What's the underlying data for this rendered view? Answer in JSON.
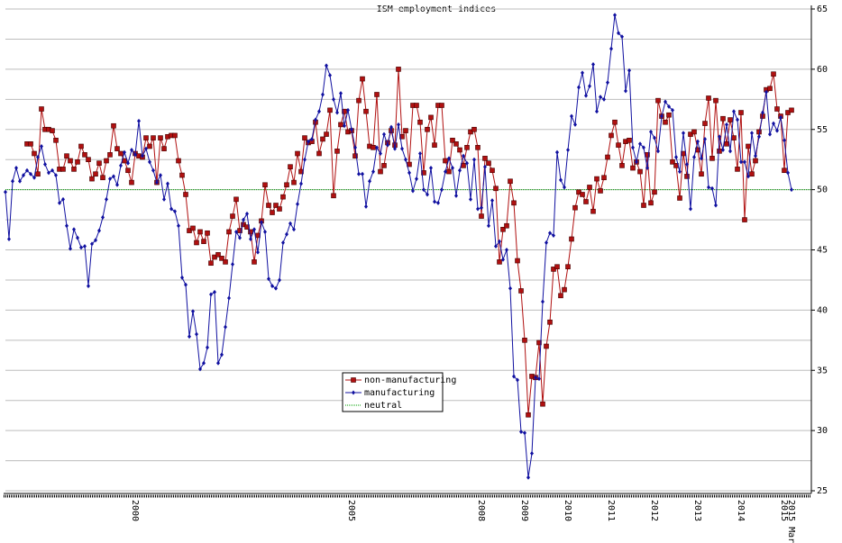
{
  "chart_data": {
    "type": "line",
    "title": "ISM employment indices",
    "categories": [
      null,
      null,
      null,
      null,
      null,
      null,
      null,
      null,
      null,
      null,
      null,
      null,
      null,
      null,
      null,
      null,
      null,
      null,
      null,
      null,
      null,
      null,
      null,
      null,
      null,
      null,
      null,
      null,
      null,
      null,
      null,
      null,
      null,
      null,
      null,
      null,
      "2000",
      null,
      null,
      null,
      null,
      null,
      null,
      null,
      null,
      null,
      null,
      null,
      null,
      null,
      null,
      null,
      null,
      null,
      null,
      null,
      null,
      null,
      null,
      null,
      null,
      null,
      null,
      null,
      null,
      null,
      null,
      null,
      null,
      null,
      null,
      null,
      null,
      null,
      null,
      null,
      null,
      null,
      null,
      null,
      null,
      null,
      null,
      null,
      null,
      null,
      null,
      null,
      null,
      null,
      null,
      null,
      null,
      null,
      null,
      null,
      "2005",
      null,
      null,
      null,
      null,
      null,
      null,
      null,
      null,
      null,
      null,
      null,
      null,
      null,
      null,
      null,
      null,
      null,
      null,
      null,
      null,
      null,
      null,
      null,
      null,
      null,
      null,
      null,
      null,
      null,
      null,
      null,
      null,
      null,
      null,
      null,
      "2008",
      null,
      null,
      null,
      null,
      null,
      null,
      null,
      null,
      null,
      null,
      null,
      "2009",
      null,
      null,
      null,
      null,
      null,
      null,
      null,
      null,
      null,
      null,
      null,
      "2010",
      null,
      null,
      null,
      null,
      null,
      null,
      null,
      null,
      null,
      null,
      null,
      "2011",
      null,
      null,
      null,
      null,
      null,
      null,
      null,
      null,
      null,
      null,
      null,
      "2012",
      null,
      null,
      null,
      null,
      null,
      null,
      null,
      null,
      null,
      null,
      null,
      "2013",
      null,
      null,
      null,
      null,
      null,
      null,
      null,
      null,
      null,
      null,
      null,
      "2014",
      null,
      null,
      null,
      null,
      null,
      null,
      null,
      null,
      null,
      null,
      null,
      "2015",
      null,
      "2015 Mar"
    ],
    "series": [
      {
        "name": "non-manufacturing",
        "color": "#b01010",
        "marker": "square",
        "values": [
          null,
          null,
          null,
          null,
          null,
          null,
          53.8,
          53.8,
          53.0,
          51.3,
          56.7,
          55.0,
          55.0,
          54.9,
          54.1,
          51.7,
          51.7,
          52.8,
          52.4,
          51.7,
          52.3,
          53.6,
          52.9,
          52.5,
          50.9,
          51.3,
          52.2,
          51.0,
          52.4,
          52.9,
          55.3,
          53.4,
          53.0,
          52.4,
          51.6,
          50.6,
          53.0,
          52.8,
          52.7,
          54.3,
          53.6,
          54.3,
          50.6,
          54.3,
          53.4,
          54.4,
          54.5,
          54.5,
          52.4,
          51.2,
          49.6,
          46.6,
          46.8,
          45.6,
          46.5,
          45.7,
          46.4,
          43.9,
          44.4,
          44.6,
          44.3,
          44.0,
          46.5,
          47.8,
          49.2,
          46.6,
          47.1,
          46.9,
          46.5,
          44.0,
          46.2,
          47.4,
          50.4,
          48.7,
          48.1,
          48.7,
          48.4,
          49.4,
          50.4,
          51.9,
          50.6,
          53.0,
          51.5,
          54.3,
          53.9,
          54.0,
          55.6,
          53.0,
          54.2,
          54.6,
          56.6,
          49.5,
          53.2,
          55.4,
          56.5,
          54.8,
          54.9,
          52.8,
          57.4,
          59.2,
          56.5,
          53.6,
          53.5,
          57.9,
          51.5,
          52.0,
          53.9,
          54.9,
          53.7,
          60.0,
          54.4,
          54.9,
          52.1,
          57.0,
          57.0,
          55.6,
          51.4,
          55.0,
          56.0,
          53.7,
          57.0,
          57.0,
          52.4,
          51.5,
          54.1,
          53.8,
          53.3,
          52.0,
          53.5,
          54.8,
          55.0,
          53.5,
          47.8,
          52.6,
          52.2,
          51.6,
          50.1,
          44.0,
          46.7,
          47.0,
          50.7,
          48.9,
          44.1,
          41.6,
          37.5,
          31.3,
          34.5,
          34.4,
          37.3,
          32.2,
          37.0,
          39.0,
          43.4,
          43.6,
          41.2,
          41.7,
          43.6,
          45.9,
          48.5,
          49.8,
          49.6,
          49.0,
          50.2,
          48.2,
          50.9,
          49.9,
          51.0,
          52.7,
          54.5,
          55.6,
          53.7,
          52.0,
          54.0,
          54.1,
          51.8,
          52.3,
          51.5,
          48.7,
          52.9,
          48.9,
          49.8,
          57.4,
          56.1,
          55.6,
          56.2,
          52.3,
          52.0,
          49.3,
          53.0,
          51.1,
          54.6,
          54.8,
          53.3,
          51.3,
          55.5,
          57.6,
          52.6,
          57.4,
          53.2,
          55.9,
          53.8,
          55.8,
          54.3,
          51.7,
          56.4,
          47.5,
          53.6,
          51.3,
          52.4,
          54.8,
          56.1,
          58.3,
          58.4,
          59.6,
          56.7,
          56.1,
          51.6,
          56.4,
          56.6
        ]
      },
      {
        "name": "manufacturing",
        "color": "#1010a0",
        "marker": "diamond",
        "values": [
          49.8,
          45.9,
          50.7,
          51.8,
          50.7,
          51.2,
          51.6,
          51.3,
          51.0,
          52.7,
          53.6,
          52.1,
          51.4,
          51.6,
          51.2,
          48.9,
          49.2,
          47.0,
          45.1,
          46.7,
          46.0,
          45.2,
          45.3,
          42.0,
          45.5,
          45.8,
          46.6,
          47.7,
          49.2,
          50.9,
          51.1,
          50.4,
          52.0,
          53.1,
          52.2,
          53.3,
          52.9,
          55.7,
          52.8,
          53.4,
          52.3,
          51.6,
          50.6,
          51.2,
          49.2,
          50.5,
          48.4,
          48.2,
          47.0,
          42.7,
          42.1,
          37.8,
          39.9,
          38.0,
          35.1,
          35.6,
          36.9,
          41.3,
          41.5,
          35.6,
          36.3,
          38.6,
          41.0,
          43.8,
          46.5,
          46.0,
          47.5,
          48.0,
          45.9,
          46.7,
          44.8,
          47.3,
          46.5,
          42.6,
          42.0,
          41.8,
          42.5,
          45.6,
          46.3,
          47.2,
          46.7,
          48.8,
          50.5,
          52.5,
          54.0,
          54.2,
          55.8,
          56.5,
          57.9,
          60.3,
          59.5,
          57.5,
          56.4,
          58.0,
          55.3,
          56.6,
          55.0,
          53.5,
          51.3,
          51.3,
          48.6,
          50.7,
          51.5,
          53.5,
          53.0,
          54.6,
          53.7,
          55.2,
          53.4,
          55.4,
          53.4,
          52.5,
          51.4,
          49.9,
          50.9,
          53.0,
          50.0,
          49.6,
          51.8,
          49.0,
          48.9,
          50.0,
          51.5,
          52.6,
          51.8,
          49.5,
          51.6,
          52.8,
          52.2,
          49.2,
          52.5,
          48.4,
          48.5,
          51.9,
          47.0,
          49.1,
          45.3,
          45.7,
          44.2,
          45.0,
          41.8,
          34.5,
          34.2,
          29.9,
          29.8,
          26.1,
          28.1,
          34.4,
          34.3,
          40.7,
          45.6,
          46.4,
          46.2,
          53.1,
          50.8,
          50.2,
          53.3,
          56.1,
          55.4,
          58.5,
          59.7,
          57.8,
          58.6,
          60.4,
          56.5,
          57.7,
          57.5,
          58.9,
          61.7,
          64.5,
          63.0,
          62.7,
          58.2,
          59.9,
          53.5,
          52.3,
          53.8,
          53.5,
          51.8,
          54.8,
          54.3,
          53.2,
          56.1,
          57.3,
          56.9,
          56.6,
          52.7,
          51.5,
          54.7,
          52.1,
          48.4,
          52.7,
          54.0,
          52.6,
          54.2,
          50.2,
          50.1,
          48.7,
          54.4,
          53.3,
          55.4,
          53.2,
          56.5,
          55.8,
          52.3,
          52.3,
          51.1,
          54.7,
          52.8,
          54.4,
          56.4,
          58.1,
          54.6,
          55.5,
          54.9,
          56.0,
          54.1,
          51.4,
          50.0
        ]
      }
    ],
    "reference_line": {
      "name": "neutral",
      "value": 50,
      "color": "#00a000"
    },
    "ylim": [
      25,
      65
    ],
    "yticks": [
      25,
      30,
      35,
      40,
      45,
      50,
      55,
      60,
      65
    ],
    "minor_yticks": [
      27.5,
      32.5,
      37.5,
      42.5,
      47.5,
      52.5,
      57.5,
      62.5
    ],
    "grid": true,
    "legend": "center",
    "y_axis_side": "right"
  }
}
